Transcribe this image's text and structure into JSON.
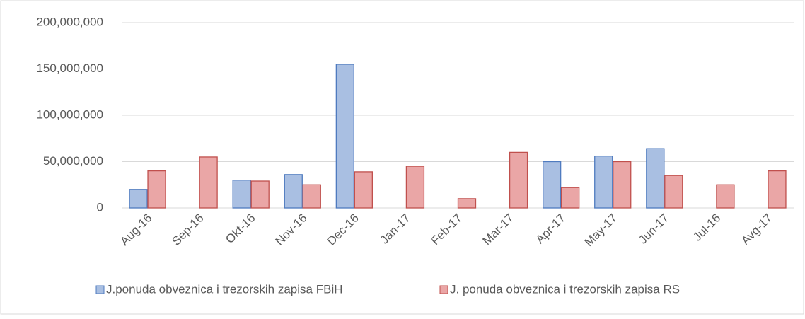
{
  "chart_data": {
    "type": "bar",
    "categories": [
      "Aug-16",
      "Sep-16",
      "Okt-16",
      "Nov-16",
      "Dec-16",
      "Jan-17",
      "Feb-17",
      "Mar-17",
      "Apr-17",
      "May-17",
      "Jun-17",
      "Jul-16",
      "Avg-17"
    ],
    "series": [
      {
        "name": "J.ponuda obveznica i trezorskih zapisa FBiH",
        "color": "#a9bfe2",
        "edge_color": "#4f7bbf",
        "values": [
          20000000,
          null,
          30000000,
          36000000,
          155000000,
          null,
          null,
          null,
          50000000,
          56000000,
          64000000,
          null,
          null
        ]
      },
      {
        "name": "J. ponuda obveznica i trezorskih zapisa RS",
        "color": "#eaa6a6",
        "edge_color": "#c0504d",
        "values": [
          40000000,
          55000000,
          29000000,
          25000000,
          39000000,
          45000000,
          10000000,
          60000000,
          22000000,
          50000000,
          35000000,
          25000000,
          40000000
        ]
      }
    ],
    "ylim": [
      0,
      200000000
    ],
    "yticks": [
      0,
      {
        "value": 50000000,
        "label": "50,000,000"
      },
      {
        "value": 100000000,
        "label": "100,000,000"
      },
      {
        "value": 150000000,
        "label": "150,000,000"
      },
      {
        "value": 200000000,
        "label": "200,000,000"
      }
    ],
    "grid": true,
    "legend": "bottom"
  }
}
